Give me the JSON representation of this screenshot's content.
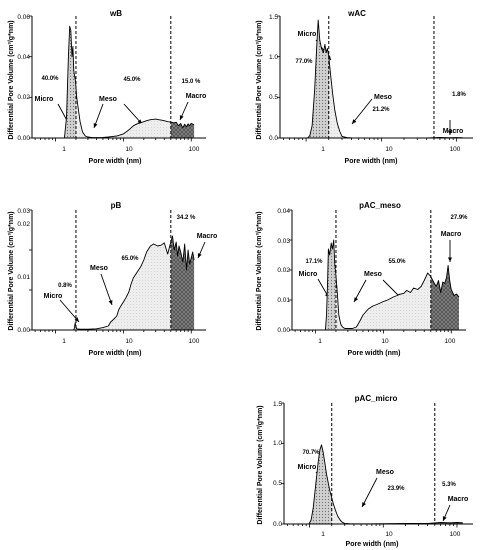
{
  "chart_data": [
    {
      "id": "wB",
      "type": "area",
      "title": "wB",
      "xlabel": "Pore width (nm)",
      "ylabel": "Differential Pore Volume (cm³/g*nm)",
      "xscale": "log",
      "xlim": [
        0.45,
        165
      ],
      "ylim": [
        0,
        0.06
      ],
      "xticks": [
        {
          "v": 1,
          "label": "1"
        },
        {
          "v": 10,
          "label": "10"
        },
        {
          "v": 100,
          "label": "100"
        }
      ],
      "yticks": [
        {
          "v": 0,
          "label": "0.00"
        },
        {
          "v": 0.02,
          "label": "0.02"
        },
        {
          "v": 0.04,
          "label": "0.04"
        },
        {
          "v": 0.06,
          "label": "0.06"
        }
      ],
      "dividers": [
        2,
        50
      ],
      "series": [
        {
          "x": [
            1.35,
            1.45,
            1.55,
            1.62,
            1.68,
            1.75,
            1.8,
            1.86,
            1.92,
            1.97,
            2.05,
            2.15,
            2.3,
            2.5,
            2.75,
            3,
            3.5,
            4,
            5,
            6,
            7,
            8,
            9,
            10,
            11,
            12,
            13,
            14,
            16,
            18,
            20,
            22,
            25,
            28,
            30,
            33,
            36,
            40,
            45,
            50,
            55,
            60,
            65,
            70,
            75,
            80,
            85,
            90,
            95,
            100,
            110
          ],
          "y": [
            0.0,
            0.01,
            0.04,
            0.055,
            0.053,
            0.04,
            0.045,
            0.033,
            0.03,
            0.028,
            0.02,
            0.015,
            0.008,
            0.003,
            0.001,
            0.0005,
            0.0002,
            0.0002,
            0.0003,
            0.0005,
            0.0008,
            0.001,
            0.0015,
            0.002,
            0.003,
            0.004,
            0.005,
            0.006,
            0.007,
            0.0075,
            0.008,
            0.0085,
            0.009,
            0.0092,
            0.0093,
            0.009,
            0.0088,
            0.0085,
            0.008,
            0.0078,
            0.0075,
            0.0077,
            0.006,
            0.0072,
            0.005,
            0.0068,
            0.0055,
            0.007,
            0.006,
            0.0072,
            0.0065
          ]
        }
      ],
      "regions": [
        {
          "name": "Micro",
          "percent": "40.0%"
        },
        {
          "name": "Meso",
          "percent": "45.0%"
        },
        {
          "name": "Macro",
          "percent": "15.0 %"
        }
      ]
    },
    {
      "id": "wAC",
      "type": "area",
      "title": "wAC",
      "xlabel": "Pore width (nm)",
      "ylabel": "Differential Pore Volume (cm³/g*nm)",
      "xscale": "log",
      "xlim": [
        0.45,
        165
      ],
      "ylim": [
        0,
        1.5
      ],
      "xticks": [
        {
          "v": 1,
          "label": "1"
        },
        {
          "v": 10,
          "label": "10"
        },
        {
          "v": 100,
          "label": "100"
        }
      ],
      "yticks": [
        {
          "v": 0,
          "label": "0.0"
        },
        {
          "v": 0.5,
          "label": "0.5"
        },
        {
          "v": 1.0,
          "label": "1.0"
        },
        {
          "v": 1.5,
          "label": "1.5"
        }
      ],
      "dividers": [
        2,
        50
      ],
      "series": [
        {
          "x": [
            1.05,
            1.12,
            1.2,
            1.3,
            1.38,
            1.45,
            1.52,
            1.6,
            1.7,
            1.78,
            1.85,
            1.92,
            2.0,
            2.1,
            2.25,
            2.4,
            2.6,
            2.8,
            3.0,
            3.5,
            4,
            5,
            7,
            10,
            20,
            40,
            60,
            80,
            100,
            120
          ],
          "y": [
            0.0,
            0.03,
            0.15,
            0.6,
            1.1,
            1.45,
            1.2,
            1.1,
            1.05,
            1.15,
            1.05,
            1.1,
            1.0,
            0.8,
            0.55,
            0.35,
            0.18,
            0.08,
            0.02,
            0.005,
            0.002,
            0.001,
            0.0005,
            0.0005,
            0.0008,
            0.001,
            0.006,
            0.004,
            0.005,
            0.004
          ]
        }
      ],
      "regions": [
        {
          "name": "Micro",
          "percent": "77.0%"
        },
        {
          "name": "Meso",
          "percent": "21.2%"
        },
        {
          "name": "Macro",
          "percent": "1.8%"
        }
      ]
    },
    {
      "id": "pB",
      "type": "area",
      "title": "pB",
      "xlabel": "Pore width (nm)",
      "ylabel": "Differential Pore Volume (cm³/g*nm)",
      "xscale": "log",
      "xlim": [
        0.45,
        165
      ],
      "ylim": [
        0,
        0.03
      ],
      "xticks": [
        {
          "v": 1,
          "label": "1"
        },
        {
          "v": 10,
          "label": "10"
        },
        {
          "v": 100,
          "label": "100"
        }
      ],
      "yticks": [
        {
          "v": 0,
          "label": "0.00"
        },
        {
          "v": 0.01,
          "label": "0.01"
        },
        {
          "v": 0.02,
          "label": "0.02"
        },
        {
          "v": 0.03,
          "label": "0.03"
        }
      ],
      "dividers": [
        2,
        50
      ],
      "series": [
        {
          "x": [
            1.85,
            1.9,
            1.95,
            2.0,
            2.05,
            2.3,
            3,
            4,
            5,
            6,
            6.5,
            7,
            7.5,
            8,
            8.5,
            9,
            10,
            11,
            12,
            13,
            14,
            16,
            18,
            20,
            22,
            25,
            28,
            32,
            36,
            40,
            45,
            50,
            53,
            56,
            60,
            63,
            66,
            70,
            75,
            80,
            85,
            90,
            95,
            100,
            105,
            110
          ],
          "y": [
            0.0,
            0.0005,
            0.0018,
            0.0008,
            0.0003,
            0.0002,
            0.0002,
            0.0003,
            0.0006,
            0.001,
            0.002,
            0.0025,
            0.003,
            0.0035,
            0.005,
            0.0058,
            0.007,
            0.0082,
            0.0095,
            0.0115,
            0.013,
            0.0145,
            0.0158,
            0.0175,
            0.0195,
            0.021,
            0.0215,
            0.021,
            0.0212,
            0.0218,
            0.019,
            0.022,
            0.0235,
            0.02,
            0.022,
            0.0185,
            0.021,
            0.0195,
            0.017,
            0.0215,
            0.015,
            0.02,
            0.0165,
            0.018,
            0.0195,
            0.0175
          ]
        }
      ],
      "regions": [
        {
          "name": "Micro",
          "percent": "0.8%"
        },
        {
          "name": "Meso",
          "percent": "65.0%"
        },
        {
          "name": "Macro",
          "percent": "34.2 %"
        }
      ]
    },
    {
      "id": "pAC_meso",
      "type": "area",
      "title": "pAC_meso",
      "xlabel": "Pore width (nm)",
      "ylabel": "Differential Pore Volume (cm³/g*nm)",
      "xscale": "log",
      "xlim": [
        0.45,
        165
      ],
      "ylim": [
        0,
        0.04
      ],
      "xticks": [
        {
          "v": 1,
          "label": "1"
        },
        {
          "v": 10,
          "label": "10"
        },
        {
          "v": 100,
          "label": "100"
        }
      ],
      "yticks": [
        {
          "v": 0,
          "label": "0.00"
        },
        {
          "v": 0.01,
          "label": "0.01"
        },
        {
          "v": 0.02,
          "label": "0.02"
        },
        {
          "v": 0.03,
          "label": "0.03"
        },
        {
          "v": 0.04,
          "label": "0.04"
        }
      ],
      "dividers": [
        2,
        50
      ],
      "series": [
        {
          "x": [
            1.4,
            1.45,
            1.5,
            1.55,
            1.62,
            1.7,
            1.78,
            1.85,
            1.92,
            2.0,
            2.1,
            2.2,
            2.35,
            2.5,
            2.7,
            3.0,
            3.5,
            4,
            4.5,
            5,
            6,
            7,
            8,
            9,
            10,
            11,
            12,
            14,
            16,
            18,
            20,
            22,
            25,
            28,
            32,
            36,
            40,
            45,
            50,
            55,
            60,
            65,
            70,
            75,
            80,
            85,
            90,
            95,
            100,
            110,
            120,
            130
          ],
          "y": [
            0.0,
            0.005,
            0.015,
            0.027,
            0.025,
            0.029,
            0.027,
            0.03,
            0.022,
            0.018,
            0.012,
            0.005,
            0.002,
            0.001,
            0.0005,
            0.0005,
            0.0005,
            0.001,
            0.003,
            0.005,
            0.007,
            0.008,
            0.0085,
            0.009,
            0.0095,
            0.0098,
            0.0102,
            0.011,
            0.0115,
            0.012,
            0.0122,
            0.0132,
            0.0125,
            0.014,
            0.0135,
            0.0145,
            0.0165,
            0.019,
            0.0178,
            0.016,
            0.0145,
            0.0165,
            0.0125,
            0.016,
            0.0155,
            0.0175,
            0.0215,
            0.0165,
            0.0135,
            0.0115,
            0.012,
            0.011
          ]
        }
      ],
      "regions": [
        {
          "name": "Micro",
          "percent": "17.1%"
        },
        {
          "name": "Meso",
          "percent": "55.0%"
        },
        {
          "name": "Macro",
          "percent": "27.9%"
        }
      ]
    },
    {
      "id": "pAC_micro",
      "type": "area",
      "title": "pAC_micro",
      "xlabel": "Pore width (nm)",
      "ylabel": "Differential Pore Volume (cm³/g*nm)",
      "xscale": "log",
      "xlim": [
        0.45,
        165
      ],
      "ylim": [
        0,
        1.5
      ],
      "xticks": [
        {
          "v": 1,
          "label": "1"
        },
        {
          "v": 10,
          "label": "10"
        },
        {
          "v": 100,
          "label": "100"
        }
      ],
      "yticks": [
        {
          "v": 0,
          "label": "0.0"
        },
        {
          "v": 0.5,
          "label": "0.5"
        },
        {
          "v": 1.0,
          "label": "1.0"
        },
        {
          "v": 1.5,
          "label": "1.5"
        }
      ],
      "dividers": [
        2,
        50
      ],
      "series": [
        {
          "x": [
            0.98,
            1.05,
            1.12,
            1.2,
            1.3,
            1.38,
            1.45,
            1.52,
            1.6,
            1.7,
            1.8,
            1.9,
            2.0,
            2.1,
            2.25,
            2.4,
            2.6,
            2.8,
            3.0,
            3.5,
            4,
            5,
            7,
            10,
            20,
            40,
            60,
            80,
            100,
            120
          ],
          "y": [
            0.0,
            0.05,
            0.2,
            0.45,
            0.75,
            0.92,
            0.98,
            0.9,
            0.78,
            0.62,
            0.5,
            0.4,
            0.33,
            0.25,
            0.17,
            0.1,
            0.05,
            0.02,
            0.008,
            0.004,
            0.003,
            0.002,
            0.003,
            0.004,
            0.006,
            0.008,
            0.02,
            0.015,
            0.018,
            0.015
          ]
        }
      ],
      "regions": [
        {
          "name": "Micro",
          "percent": "70.7%"
        },
        {
          "name": "Meso",
          "percent": "23.9%"
        },
        {
          "name": "Macro",
          "percent": "5.3%"
        }
      ]
    }
  ]
}
